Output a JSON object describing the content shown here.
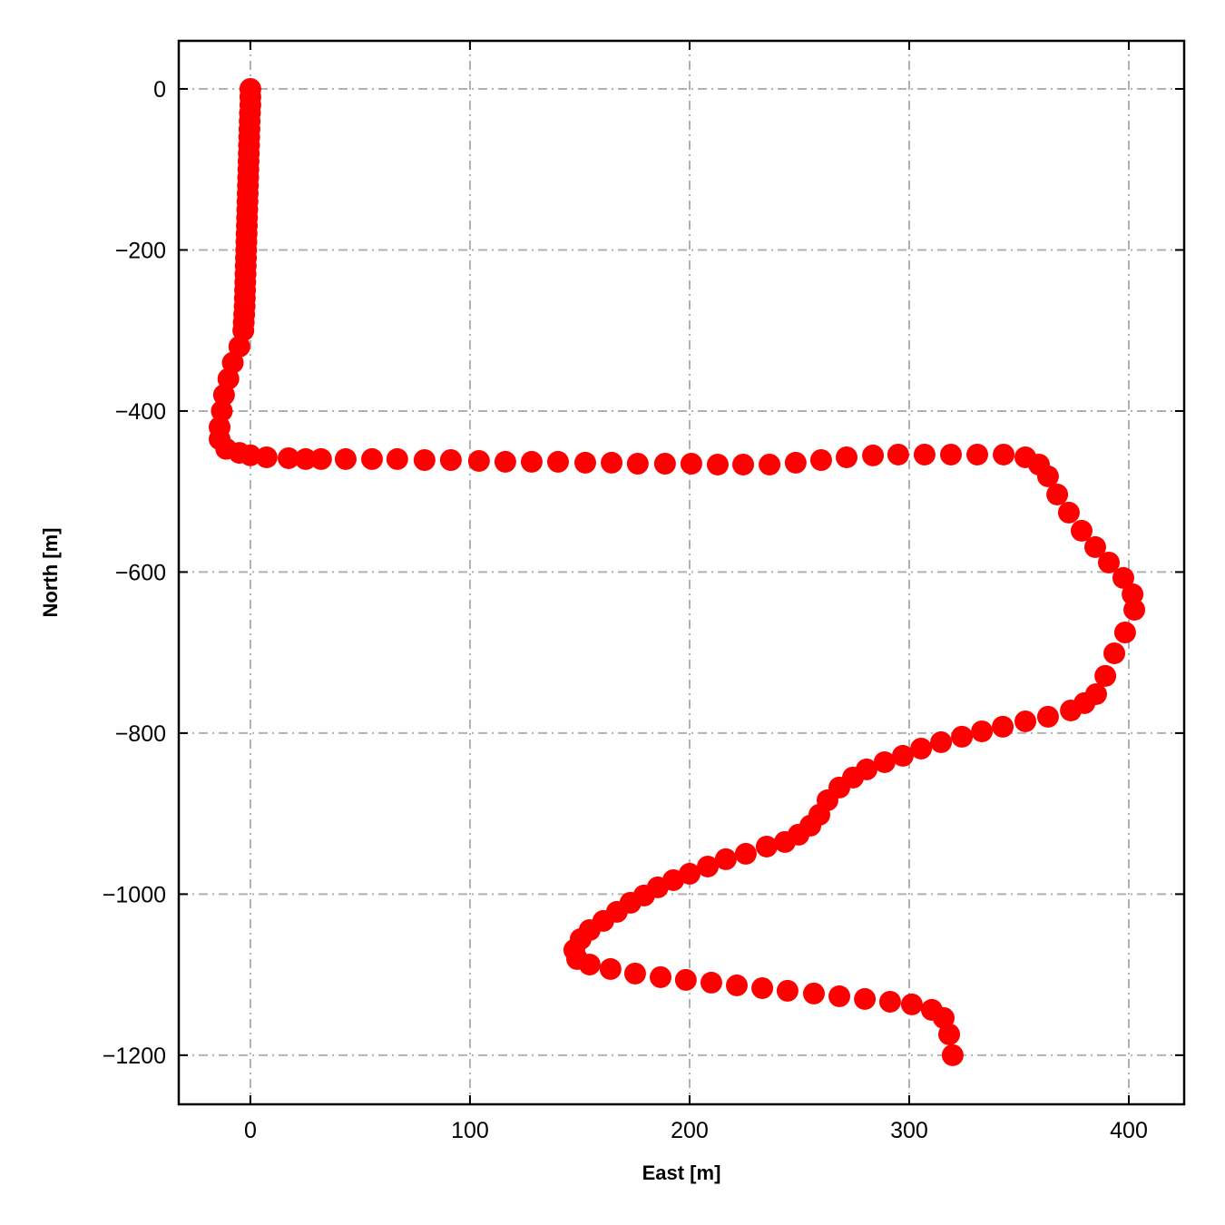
{
  "chart_data": {
    "type": "scatter",
    "title": "",
    "xlabel": "East [m]",
    "ylabel": "North [m]",
    "xlim": [
      -32.6,
      425.2
    ],
    "ylim": [
      -1261,
      59.7
    ],
    "xticks": [
      0,
      100,
      200,
      300,
      400
    ],
    "yticks": [
      0,
      -200,
      -400,
      -600,
      -800,
      -1000,
      -1200
    ],
    "xtick_labels": [
      "0",
      "100",
      "200",
      "300",
      "400"
    ],
    "ytick_labels": [
      "0",
      "−200",
      "−400",
      "−600",
      "−800",
      "−1000",
      "−1200"
    ],
    "grid": true,
    "marker_color": "#ff0000",
    "points": [
      [
        0,
        0
      ],
      [
        0,
        -10
      ],
      [
        0,
        -20
      ],
      [
        -0.2,
        -30
      ],
      [
        -0.3,
        -40
      ],
      [
        -0.4,
        -50
      ],
      [
        -0.5,
        -60
      ],
      [
        -0.6,
        -70
      ],
      [
        -0.7,
        -80
      ],
      [
        -0.8,
        -90
      ],
      [
        -0.9,
        -100
      ],
      [
        -1,
        -110
      ],
      [
        -1.1,
        -120
      ],
      [
        -1.2,
        -130
      ],
      [
        -1.3,
        -140
      ],
      [
        -1.4,
        -150
      ],
      [
        -1.5,
        -160
      ],
      [
        -1.6,
        -170
      ],
      [
        -1.7,
        -180
      ],
      [
        -1.8,
        -190
      ],
      [
        -1.9,
        -200
      ],
      [
        -2,
        -210
      ],
      [
        -2.1,
        -220
      ],
      [
        -2.2,
        -230
      ],
      [
        -2.3,
        -240
      ],
      [
        -2.4,
        -250
      ],
      [
        -2.5,
        -260
      ],
      [
        -2.6,
        -270
      ],
      [
        -2.8,
        -280
      ],
      [
        -3,
        -290
      ],
      [
        -3.2,
        -300
      ],
      [
        -5,
        -320
      ],
      [
        -8,
        -340
      ],
      [
        -10,
        -360
      ],
      [
        -12,
        -380
      ],
      [
        -13,
        -400
      ],
      [
        -14,
        -420
      ],
      [
        -14,
        -435
      ],
      [
        -11,
        -447
      ],
      [
        -5,
        -452
      ],
      [
        0,
        -455
      ],
      [
        7.4,
        -457.5
      ],
      [
        17.4,
        -458.6
      ],
      [
        25.2,
        -459.7
      ],
      [
        32.2,
        -459.7
      ],
      [
        43.4,
        -459.7
      ],
      [
        55.4,
        -459.7
      ],
      [
        66.9,
        -459.7
      ],
      [
        79.3,
        -460.9
      ],
      [
        91.3,
        -460.9
      ],
      [
        104.1,
        -462
      ],
      [
        116.1,
        -463.1
      ],
      [
        128.1,
        -463.1
      ],
      [
        140.1,
        -463.1
      ],
      [
        152.5,
        -464.2
      ],
      [
        164.5,
        -464.2
      ],
      [
        176.4,
        -465.4
      ],
      [
        188.8,
        -465.4
      ],
      [
        200.8,
        -465.4
      ],
      [
        212.8,
        -466.5
      ],
      [
        224.4,
        -466.5
      ],
      [
        236.4,
        -466.5
      ],
      [
        248.3,
        -464.2
      ],
      [
        259.9,
        -460.9
      ],
      [
        271.5,
        -457.5
      ],
      [
        283.5,
        -455.2
      ],
      [
        295,
        -454.1
      ],
      [
        307,
        -454.1
      ],
      [
        319,
        -454.1
      ],
      [
        331,
        -454.1
      ],
      [
        343,
        -454.1
      ],
      [
        352.9,
        -457.5
      ],
      [
        359.1,
        -466.5
      ],
      [
        363.2,
        -481.1
      ],
      [
        367.4,
        -503.7
      ],
      [
        372.7,
        -526.2
      ],
      [
        378.5,
        -548.7
      ],
      [
        384.7,
        -569
      ],
      [
        390.9,
        -588.2
      ],
      [
        397.5,
        -607.3
      ],
      [
        401.7,
        -627.6
      ],
      [
        402.5,
        -646.8
      ],
      [
        398.3,
        -675
      ],
      [
        393.4,
        -700.9
      ],
      [
        389.3,
        -729
      ],
      [
        385.1,
        -751.6
      ],
      [
        379.8,
        -762.8
      ],
      [
        373.6,
        -771.9
      ],
      [
        363.2,
        -779.7
      ],
      [
        352.9,
        -785.4
      ],
      [
        342.6,
        -792.1
      ],
      [
        333.1,
        -797.8
      ],
      [
        324,
        -804.5
      ],
      [
        314.5,
        -811.3
      ],
      [
        305.4,
        -819.2
      ],
      [
        297.1,
        -828.2
      ],
      [
        288.8,
        -836.1
      ],
      [
        280.6,
        -845.1
      ],
      [
        274.4,
        -855.2
      ],
      [
        268.2,
        -867.6
      ],
      [
        262.8,
        -883.4
      ],
      [
        259.1,
        -901.4
      ],
      [
        255,
        -914.9
      ],
      [
        249.6,
        -926.2
      ],
      [
        243.4,
        -935.2
      ],
      [
        235.1,
        -940.9
      ],
      [
        225.6,
        -949.9
      ],
      [
        216.5,
        -956.6
      ],
      [
        208.3,
        -965.7
      ],
      [
        200,
        -974.7
      ],
      [
        192.6,
        -982.6
      ],
      [
        185.5,
        -991.6
      ],
      [
        179.3,
        -1001.7
      ],
      [
        173.1,
        -1010.7
      ],
      [
        166.9,
        -1022
      ],
      [
        160.7,
        -1033.3
      ],
      [
        154.5,
        -1044.6
      ],
      [
        150.4,
        -1055.8
      ],
      [
        147.5,
        -1069.3
      ],
      [
        148.8,
        -1080.6
      ],
      [
        154.5,
        -1087.4
      ],
      [
        164,
        -1093
      ],
      [
        175.2,
        -1098.6
      ],
      [
        186.8,
        -1103.1
      ],
      [
        198.3,
        -1106.5
      ],
      [
        209.9,
        -1109.9
      ],
      [
        221.5,
        -1113.3
      ],
      [
        233.1,
        -1116.7
      ],
      [
        244.6,
        -1120
      ],
      [
        256.6,
        -1123.4
      ],
      [
        268.2,
        -1126.8
      ],
      [
        279.8,
        -1130.2
      ],
      [
        291.3,
        -1133.6
      ],
      [
        301.2,
        -1136.9
      ],
      [
        310.3,
        -1143.7
      ],
      [
        315.7,
        -1153.8
      ],
      [
        318.2,
        -1174.1
      ],
      [
        319.8,
        -1200
      ]
    ]
  }
}
